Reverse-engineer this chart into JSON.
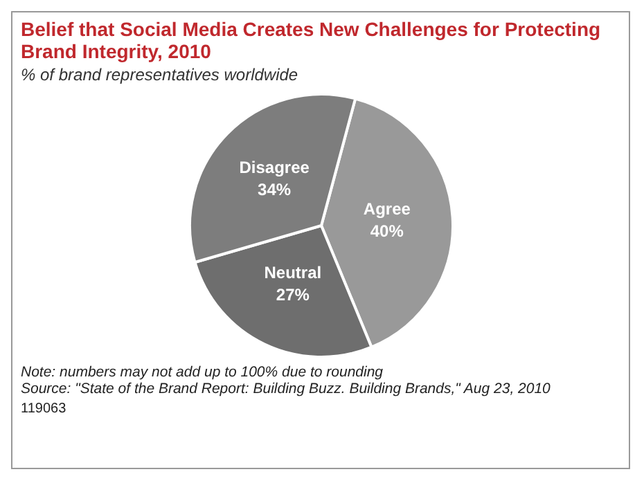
{
  "chart_data": {
    "type": "pie",
    "title": "Belief that Social Media Creates New Challenges for Protecting Brand Integrity, 2010",
    "subtitle": "% of brand representatives worldwide",
    "categories": [
      "Agree",
      "Neutral",
      "Disagree"
    ],
    "values": [
      40,
      27,
      34
    ],
    "value_labels": [
      "40%",
      "27%",
      "34%"
    ],
    "colors": [
      "#999999",
      "#6e6e6e",
      "#7d7d7d"
    ],
    "legend": false,
    "annotations": [
      "Note: numbers may not add up to 100% due to rounding",
      "Source: \"State of the Brand Report: Building Buzz. Building Brands,\" Aug 23, 2010",
      "119063"
    ]
  }
}
